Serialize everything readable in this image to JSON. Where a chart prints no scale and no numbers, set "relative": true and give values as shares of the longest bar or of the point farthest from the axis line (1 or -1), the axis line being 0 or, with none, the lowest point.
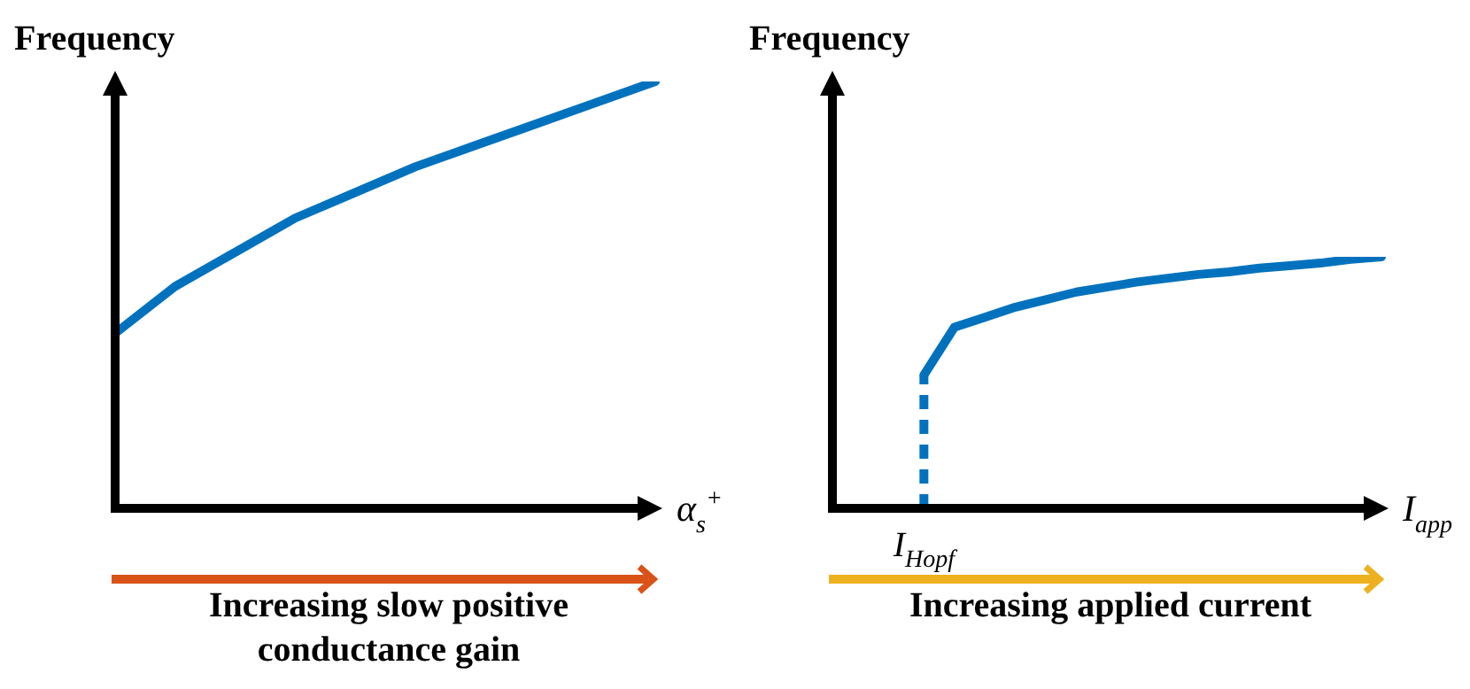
{
  "chart_data": [
    {
      "type": "line",
      "relative": true,
      "ylabel": "Frequency",
      "xlabel": "α$_{s}$$^{+}$",
      "categories": [
        null,
        null,
        null,
        null,
        null,
        null,
        null,
        null,
        null,
        null
      ],
      "series": [
        {
          "color": "#0072bd",
          "values": [
            0.41,
            0.52,
            0.6,
            0.68,
            0.74,
            0.8,
            0.85,
            0.9,
            0.95,
            1.0
          ]
        }
      ],
      "annotations": [
        "Increasing slow positive conductance gain"
      ]
    },
    {
      "type": "line",
      "relative": true,
      "ylabel": "Frequency",
      "xlabel": "I$_{app}$",
      "categories": [
        null,
        null,
        null,
        null,
        null,
        null,
        null,
        null,
        null,
        null,
        null,
        null,
        null,
        null,
        null,
        null,
        null,
        null,
        null
      ],
      "series": [
        {
          "color": "#0072bd",
          "values": [
            null,
            null,
            null,
            0.53,
            0.72,
            0.76,
            0.8,
            0.83,
            0.86,
            0.88,
            0.9,
            0.915,
            0.93,
            0.94,
            0.955,
            0.965,
            0.975,
            0.99,
            1.0
          ]
        }
      ],
      "ref_lines": [
        {
          "axis": "x",
          "label": "I$_{Hopf}$",
          "color": "#0072bd",
          "line_style": "dashed"
        }
      ],
      "annotations": [
        "Increasing applied current"
      ]
    }
  ]
}
